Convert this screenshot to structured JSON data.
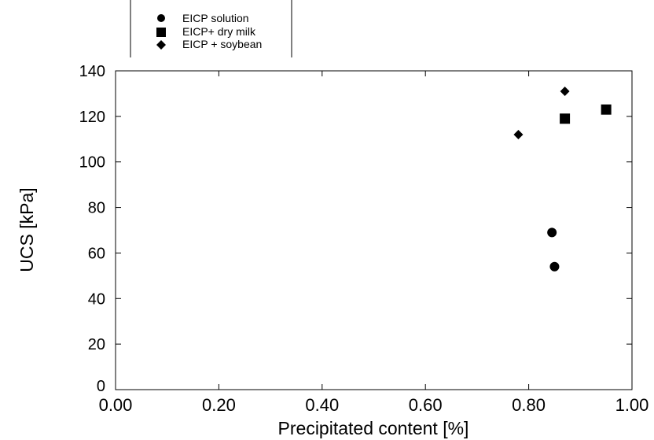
{
  "chart_data": {
    "type": "scatter",
    "title": "",
    "xlabel": "Precipitated content [%]",
    "ylabel": "UCS [kPa]",
    "xlim": [
      0,
      1
    ],
    "ylim": [
      0,
      140
    ],
    "grid": false,
    "legend_position": "top-left",
    "x_tick_labels": [
      "0.00",
      "0.20",
      "0.40",
      "0.60",
      "0.80",
      "1.00"
    ],
    "y_tick_labels": [
      "0",
      "20",
      "40",
      "60",
      "80",
      "100",
      "120",
      "140"
    ],
    "series": [
      {
        "name": "EICP solution",
        "marker": "circle",
        "points": [
          {
            "x": 0.845,
            "y": 69
          },
          {
            "x": 0.85,
            "y": 54
          }
        ]
      },
      {
        "name": "EICP+ dry milk",
        "marker": "square",
        "points": [
          {
            "x": 0.87,
            "y": 119
          },
          {
            "x": 0.95,
            "y": 123
          }
        ]
      },
      {
        "name": "EICP + soybean",
        "marker": "diamond",
        "points": [
          {
            "x": 0.78,
            "y": 112
          },
          {
            "x": 0.87,
            "y": 131
          }
        ]
      }
    ],
    "colors": {
      "marker": "#000000",
      "axis": "#000000"
    }
  }
}
